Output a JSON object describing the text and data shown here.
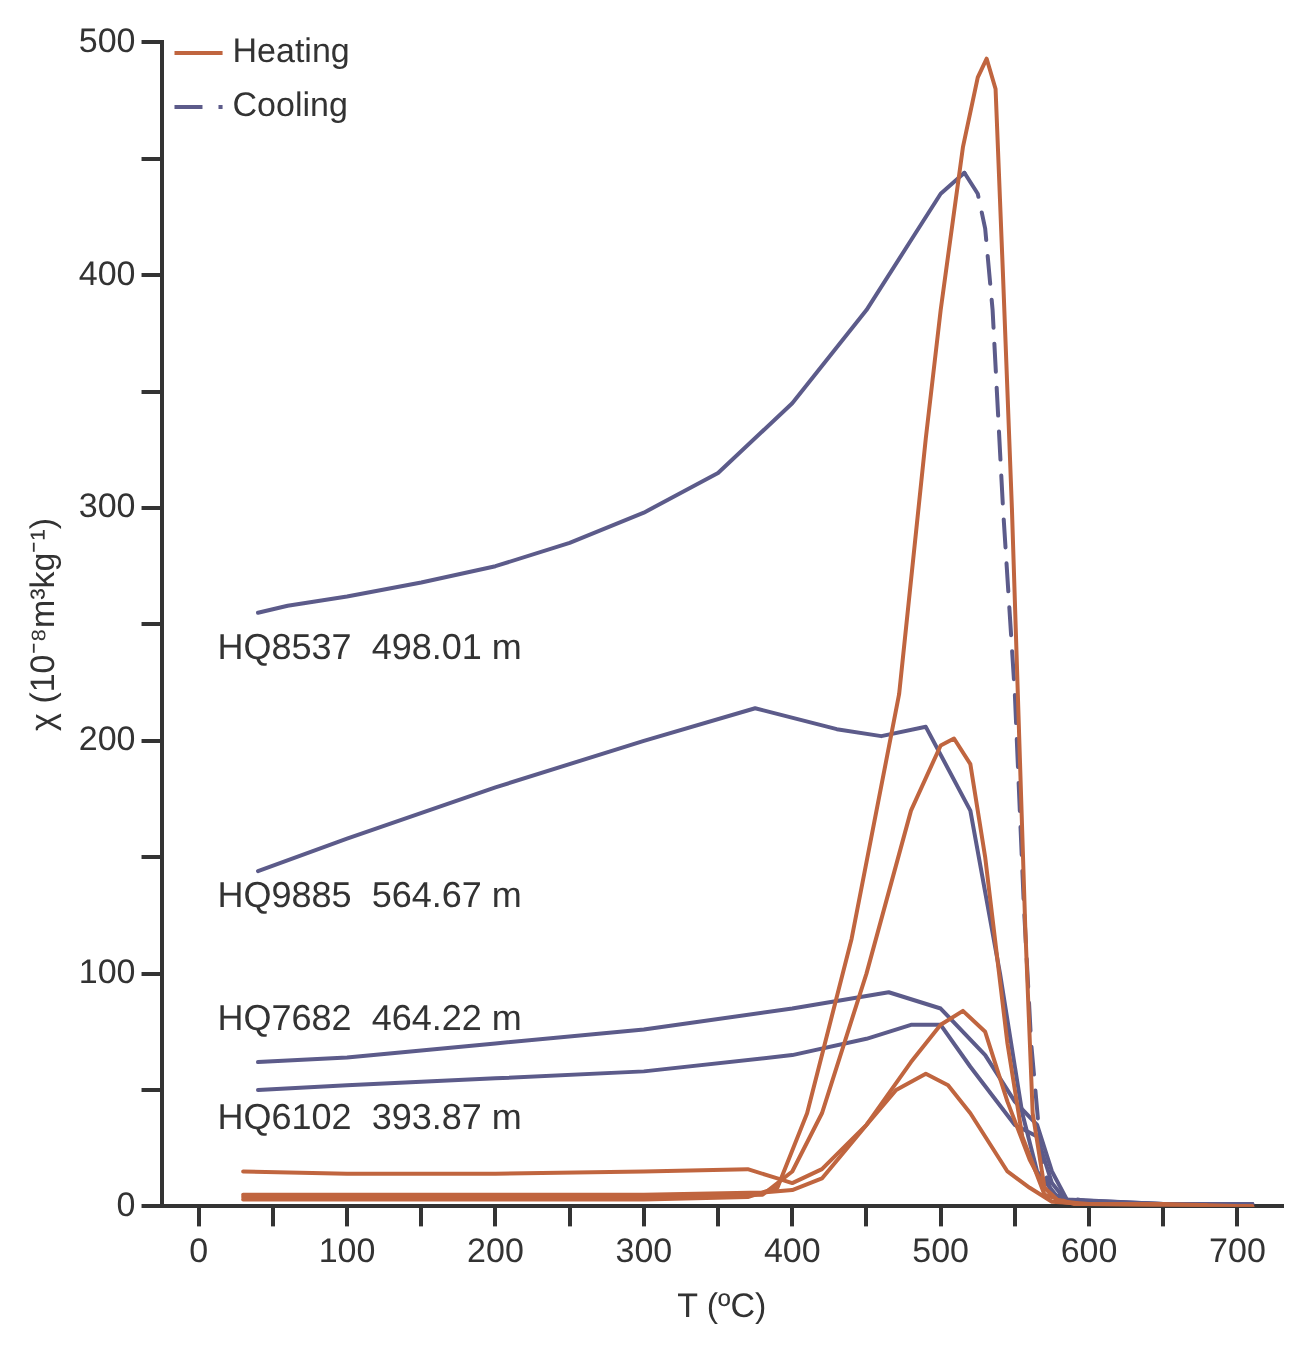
{
  "chart_data": {
    "type": "line",
    "xlabel": "T (ºC)",
    "ylabel": "χ (10⁻⁸m³kg⁻¹)",
    "xlim": [
      -25,
      730
    ],
    "ylim": [
      0,
      500
    ],
    "xticks": [
      0,
      {
        "value": 50,
        "label": null
      },
      100,
      {
        "value": 150,
        "label": null
      },
      200,
      {
        "value": 250,
        "label": null
      },
      300,
      {
        "value": 350,
        "label": null
      },
      400,
      {
        "value": 450,
        "label": null
      },
      500,
      {
        "value": 550,
        "label": null
      },
      600,
      {
        "value": 650,
        "label": null
      },
      700
    ],
    "yticks": [
      0,
      {
        "value": 50,
        "label": null
      },
      100,
      {
        "value": 150,
        "label": null
      },
      200,
      {
        "value": 250,
        "label": null
      },
      300,
      {
        "value": 350,
        "label": null
      },
      400,
      {
        "value": 450,
        "label": null
      },
      500
    ],
    "grid": false,
    "legend": "top left",
    "marker": "none",
    "annotations": [
      "HQ8537  498.01 m",
      "HQ9885  564.67 m",
      "HQ7682  464.22 m",
      "HQ6102  393.87 m"
    ],
    "series": [
      {
        "name": "Heating",
        "color": "#c0653f",
        "line_style": "solid",
        "x": [
          30,
          100,
          200,
          300,
          370,
          390,
          410,
          440,
          472,
          490,
          500,
          515,
          525,
          531,
          537,
          542,
          548,
          552,
          557,
          562,
          570,
          580,
          600,
          650,
          710
        ],
        "values": [
          3,
          3,
          3,
          3,
          4,
          8,
          40,
          115,
          220,
          330,
          385,
          455,
          485,
          493,
          480,
          400,
          300,
          220,
          120,
          40,
          8,
          2,
          1,
          1,
          0
        ]
      },
      {
        "name": "Cooling",
        "color": "#5c5b8a",
        "line_style": "dashed",
        "x": [
          516,
          525,
          530,
          535,
          542,
          550,
          556,
          561,
          568,
          575,
          600,
          650,
          710
        ],
        "values": [
          444,
          435,
          420,
          385,
          300,
          220,
          130,
          70,
          20,
          5,
          2,
          1,
          1
        ]
      },
      {
        "color": "#c0653f",
        "line_style": "solid",
        "x": [
          30,
          100,
          200,
          300,
          380,
          400,
          420,
          450,
          480,
          500,
          509,
          520,
          530,
          545,
          555,
          570,
          590,
          650,
          710
        ],
        "values": [
          4,
          4,
          4,
          4,
          5,
          15,
          40,
          100,
          170,
          198,
          201,
          190,
          150,
          70,
          30,
          5,
          1,
          1,
          0
        ]
      },
      {
        "color": "#c0653f",
        "line_style": "solid",
        "x": [
          30,
          100,
          200,
          300,
          380,
          400,
          420,
          450,
          480,
          500,
          515,
          530,
          545,
          560,
          570,
          580,
          600,
          710
        ],
        "values": [
          5,
          5,
          5,
          5,
          6,
          7,
          12,
          35,
          62,
          78,
          84,
          75,
          45,
          20,
          8,
          2,
          1,
          0
        ]
      },
      {
        "color": "#c0653f",
        "line_style": "solid",
        "x": [
          30,
          100,
          200,
          300,
          370,
          390,
          400,
          420,
          450,
          470,
          490,
          505,
          520,
          545,
          560,
          575,
          600,
          710
        ],
        "values": [
          15,
          14,
          14,
          15,
          16,
          12,
          10,
          16,
          35,
          50,
          57,
          52,
          40,
          15,
          8,
          2,
          1,
          0
        ]
      },
      {
        "color": "#5c5b8a",
        "line_style": "solid",
        "x": [
          40,
          60,
          100,
          150,
          200,
          250,
          300,
          350,
          400,
          450,
          480,
          500,
          516
        ],
        "values": [
          255,
          258,
          262,
          268,
          275,
          285,
          298,
          315,
          345,
          385,
          415,
          435,
          444
        ]
      },
      {
        "color": "#5c5b8a",
        "line_style": "solid",
        "x": [
          40,
          100,
          200,
          300,
          375,
          430,
          460,
          490,
          520,
          540,
          555,
          565,
          580,
          650,
          710
        ],
        "values": [
          144,
          158,
          180,
          200,
          214,
          205,
          202,
          206,
          170,
          100,
          40,
          15,
          3,
          1,
          1
        ]
      },
      {
        "color": "#5c5b8a",
        "line_style": "solid",
        "x": [
          40,
          100,
          200,
          300,
          400,
          465,
          500,
          530,
          550,
          565,
          575,
          585,
          650,
          710
        ],
        "values": [
          62,
          64,
          70,
          76,
          85,
          92,
          85,
          65,
          45,
          35,
          15,
          3,
          1,
          1
        ]
      },
      {
        "color": "#5c5b8a",
        "line_style": "solid",
        "x": [
          40,
          100,
          200,
          300,
          400,
          450,
          480,
          500,
          520,
          550,
          565,
          575,
          585,
          650,
          710
        ],
        "values": [
          50,
          52,
          55,
          58,
          65,
          72,
          78,
          78,
          60,
          35,
          30,
          10,
          2,
          1,
          1
        ]
      }
    ]
  }
}
